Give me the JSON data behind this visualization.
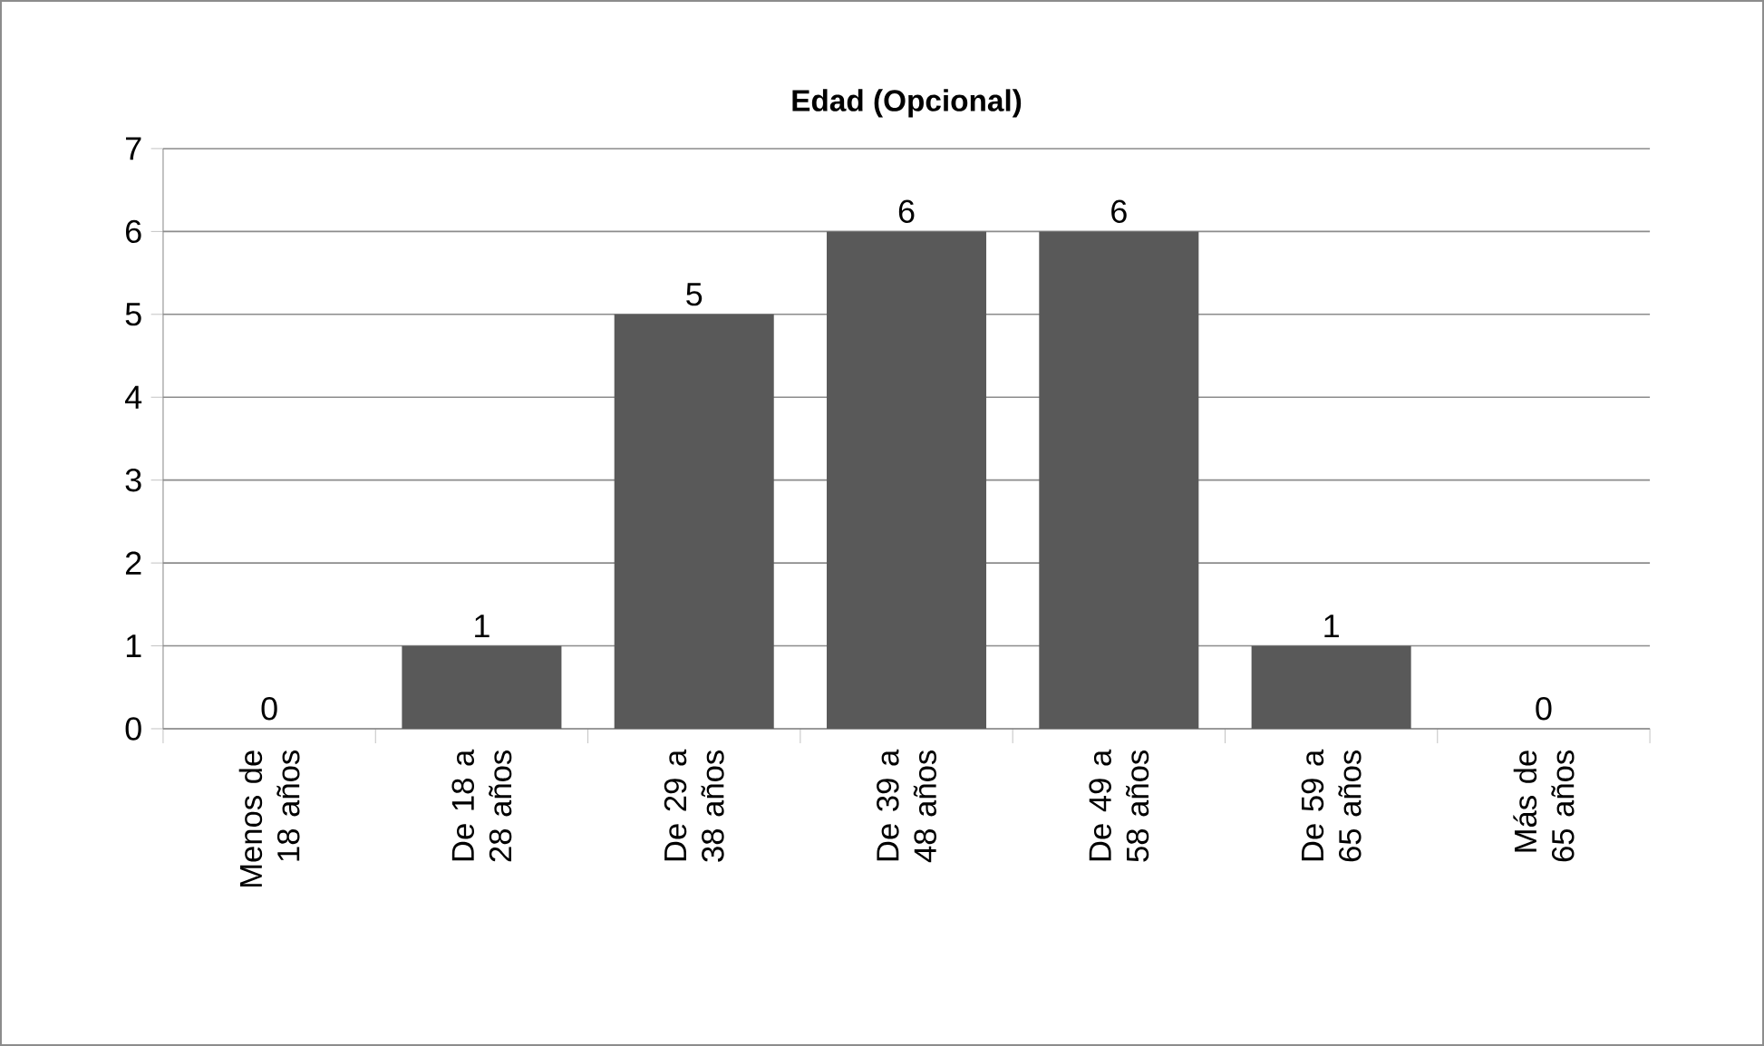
{
  "chart_data": {
    "type": "bar",
    "title": "Edad (Opcional)",
    "categories": [
      "Menos de 18 años",
      "De 18 a 28 años",
      "De 29 a 38 años",
      "De 39 a 48 años",
      "De 49 a 58 años",
      "De 59 a 65 años",
      "Más de 65 años"
    ],
    "values": [
      0,
      1,
      5,
      6,
      6,
      1,
      0
    ],
    "color": "#595959",
    "ylim": [
      0,
      7
    ],
    "yticks": [
      0,
      1,
      2,
      3,
      4,
      5,
      6,
      7
    ],
    "grid": "y",
    "data_labels": true
  }
}
